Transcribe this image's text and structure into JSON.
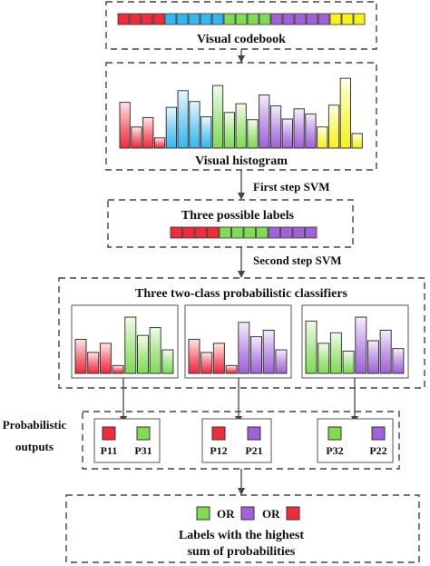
{
  "colors": {
    "red": "#f02b3b",
    "blue": "#35b8ef",
    "green": "#7fdc53",
    "purple": "#9f62d8",
    "yellow": "#f7f31a"
  },
  "codebook": {
    "label": "Visual codebook",
    "cells": [
      "red",
      "red",
      "red",
      "red",
      "blue",
      "blue",
      "blue",
      "blue",
      "blue",
      "green",
      "green",
      "green",
      "green",
      "purple",
      "purple",
      "purple",
      "purple",
      "purple",
      "yellow",
      "yellow",
      "yellow"
    ]
  },
  "histogram": {
    "label": "Visual histogram",
    "bars": [
      {
        "color": "red",
        "value": 0.63
      },
      {
        "color": "red",
        "value": 0.29
      },
      {
        "color": "red",
        "value": 0.42
      },
      {
        "color": "red",
        "value": 0.14
      },
      {
        "color": "blue",
        "value": 0.56
      },
      {
        "color": "blue",
        "value": 0.79
      },
      {
        "color": "blue",
        "value": 0.64
      },
      {
        "color": "blue",
        "value": 0.43
      },
      {
        "color": "green",
        "value": 0.86
      },
      {
        "color": "green",
        "value": 0.49
      },
      {
        "color": "green",
        "value": 0.61
      },
      {
        "color": "green",
        "value": 0.39
      },
      {
        "color": "purple",
        "value": 0.73
      },
      {
        "color": "purple",
        "value": 0.58
      },
      {
        "color": "purple",
        "value": 0.4
      },
      {
        "color": "purple",
        "value": 0.54
      },
      {
        "color": "purple",
        "value": 0.47
      },
      {
        "color": "yellow",
        "value": 0.29
      },
      {
        "color": "yellow",
        "value": 0.59
      },
      {
        "color": "yellow",
        "value": 0.96
      },
      {
        "color": "yellow",
        "value": 0.2
      }
    ]
  },
  "step1_label": "First step  SVM",
  "three_labels": {
    "label": "Three possible labels",
    "cells": [
      "red",
      "red",
      "red",
      "red",
      "green",
      "green",
      "green",
      "green",
      "purple",
      "purple",
      "purple",
      "purple"
    ]
  },
  "step2_label": "Second step  SVM",
  "classifiers": {
    "label": "Three two-class probabilistic classifiers",
    "panels": [
      {
        "bars": [
          {
            "color": "red",
            "value": 0.52
          },
          {
            "color": "red",
            "value": 0.32
          },
          {
            "color": "red",
            "value": 0.46
          },
          {
            "color": "red",
            "value": 0.12
          },
          {
            "color": "green",
            "value": 0.86
          },
          {
            "color": "green",
            "value": 0.58
          },
          {
            "color": "green",
            "value": 0.7
          },
          {
            "color": "green",
            "value": 0.36
          }
        ]
      },
      {
        "bars": [
          {
            "color": "red",
            "value": 0.52
          },
          {
            "color": "red",
            "value": 0.32
          },
          {
            "color": "red",
            "value": 0.46
          },
          {
            "color": "red",
            "value": 0.12
          },
          {
            "color": "purple",
            "value": 0.78
          },
          {
            "color": "purple",
            "value": 0.56
          },
          {
            "color": "purple",
            "value": 0.66
          },
          {
            "color": "purple",
            "value": 0.36
          }
        ]
      },
      {
        "bars": [
          {
            "color": "green",
            "value": 0.8
          },
          {
            "color": "green",
            "value": 0.46
          },
          {
            "color": "green",
            "value": 0.62
          },
          {
            "color": "green",
            "value": 0.34
          },
          {
            "color": "purple",
            "value": 0.86
          },
          {
            "color": "purple",
            "value": 0.5
          },
          {
            "color": "purple",
            "value": 0.66
          },
          {
            "color": "purple",
            "value": 0.38
          }
        ]
      }
    ]
  },
  "outputs": {
    "label_line1": "Probabilistic",
    "label_line2": "outputs",
    "groups": [
      [
        {
          "color": "red",
          "label": "P11"
        },
        {
          "color": "green",
          "label": "P31"
        }
      ],
      [
        {
          "color": "red",
          "label": "P12"
        },
        {
          "color": "purple",
          "label": "P21"
        }
      ],
      [
        {
          "color": "green",
          "label": "P32"
        },
        {
          "color": "purple",
          "label": "P22"
        }
      ]
    ]
  },
  "result": {
    "or_text": "OR",
    "order": [
      "green",
      "purple",
      "red"
    ],
    "line1": "Labels with the highest",
    "line2": "sum of probabilities"
  }
}
